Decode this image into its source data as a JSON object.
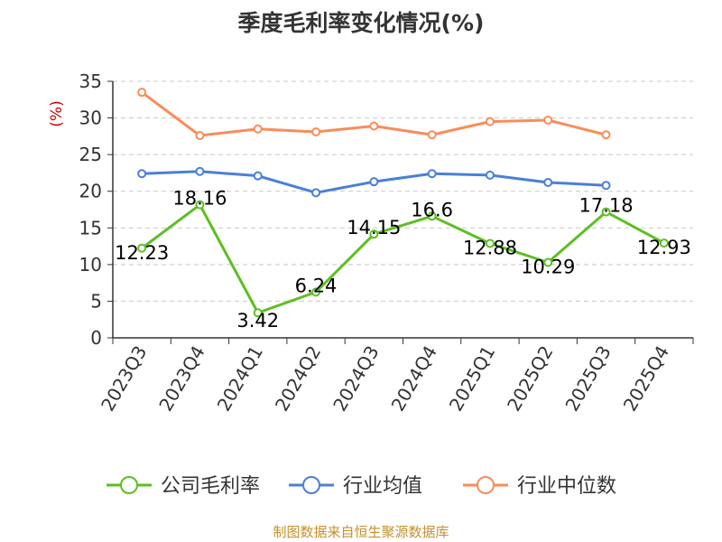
{
  "chart_data": {
    "type": "line",
    "title": "季度毛利率变化情况(%)",
    "ylabel": "(%)",
    "xlabel": "",
    "categories": [
      "2023Q3",
      "2023Q4",
      "2024Q1",
      "2024Q2",
      "2024Q3",
      "2024Q4",
      "2025Q1",
      "2025Q2",
      "2025Q3",
      "2025Q4"
    ],
    "ylim": [
      0,
      35
    ],
    "yticks": [
      "0",
      "5",
      "10",
      "15",
      "20",
      "25",
      "30",
      "35"
    ],
    "grid": true,
    "legend_position": "bottom",
    "series": [
      {
        "name": "公司毛利率",
        "color": "#5cbf22",
        "values": [
          12.23,
          18.16,
          3.42,
          6.24,
          14.15,
          16.6,
          12.88,
          10.29,
          17.18,
          12.93
        ],
        "labels": [
          "12.23",
          "18.16",
          "3.42",
          "6.24",
          "14.15",
          "16.6",
          "12.88",
          "10.29",
          "17.18",
          "12.93"
        ]
      },
      {
        "name": "行业均值",
        "color": "#4a7fd8",
        "values": [
          22.4,
          22.7,
          22.1,
          19.8,
          21.3,
          22.4,
          22.2,
          21.2,
          20.8,
          null
        ]
      },
      {
        "name": "行业中位数",
        "color": "#f98c5a",
        "values": [
          33.5,
          27.6,
          28.5,
          28.1,
          28.9,
          27.7,
          29.5,
          29.7,
          27.7,
          null
        ]
      }
    ]
  },
  "footer": {
    "source": "制图数据来自恒生聚源数据库",
    "color": "#c4902e"
  }
}
